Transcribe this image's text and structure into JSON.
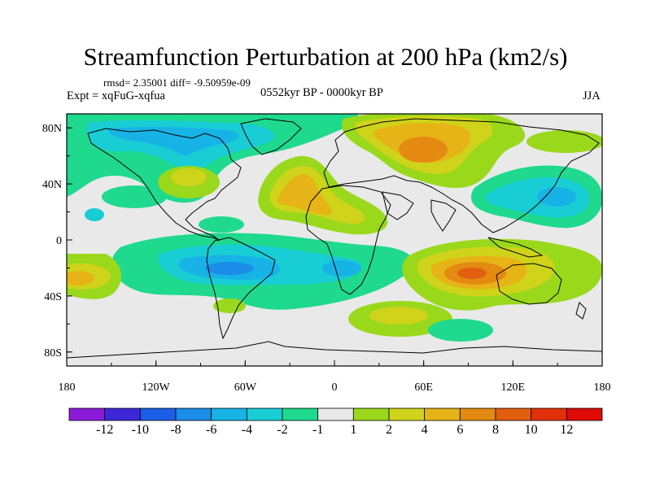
{
  "title": "Streamfunction Perturbation at 200 hPa (km2/s)",
  "stats_line": "rmsd= 2.35001 diff= -9.50959e-09",
  "experiment_label": "Expt = xqFuG-xqfua",
  "period_label": "0552kyr BP - 0000kyr BP",
  "season_label": "JJA",
  "axes": {
    "lon_ticks": [
      "180",
      "120W",
      "60W",
      "0",
      "60E",
      "120E",
      "180"
    ],
    "lat_ticks": [
      "80N",
      "40N",
      "0",
      "40S",
      "80S"
    ]
  },
  "colorbar": {
    "colors": [
      "#8c1bd9",
      "#3c28d8",
      "#1b5fe6",
      "#1b8de8",
      "#17b3e6",
      "#19cdd5",
      "#1ed98e",
      "#e9e9e9",
      "#9ad81c",
      "#cfd31a",
      "#e6b417",
      "#e48a12",
      "#e25f0f",
      "#e2300b",
      "#e00a06"
    ],
    "labels": [
      "-12",
      "-10",
      "-8",
      "-6",
      "-4",
      "-2",
      "-1",
      "1",
      "2",
      "4",
      "6",
      "8",
      "10",
      "12"
    ]
  },
  "colors": {
    "ocean_background": "#e9e9e9",
    "coastline": "#000000"
  }
}
